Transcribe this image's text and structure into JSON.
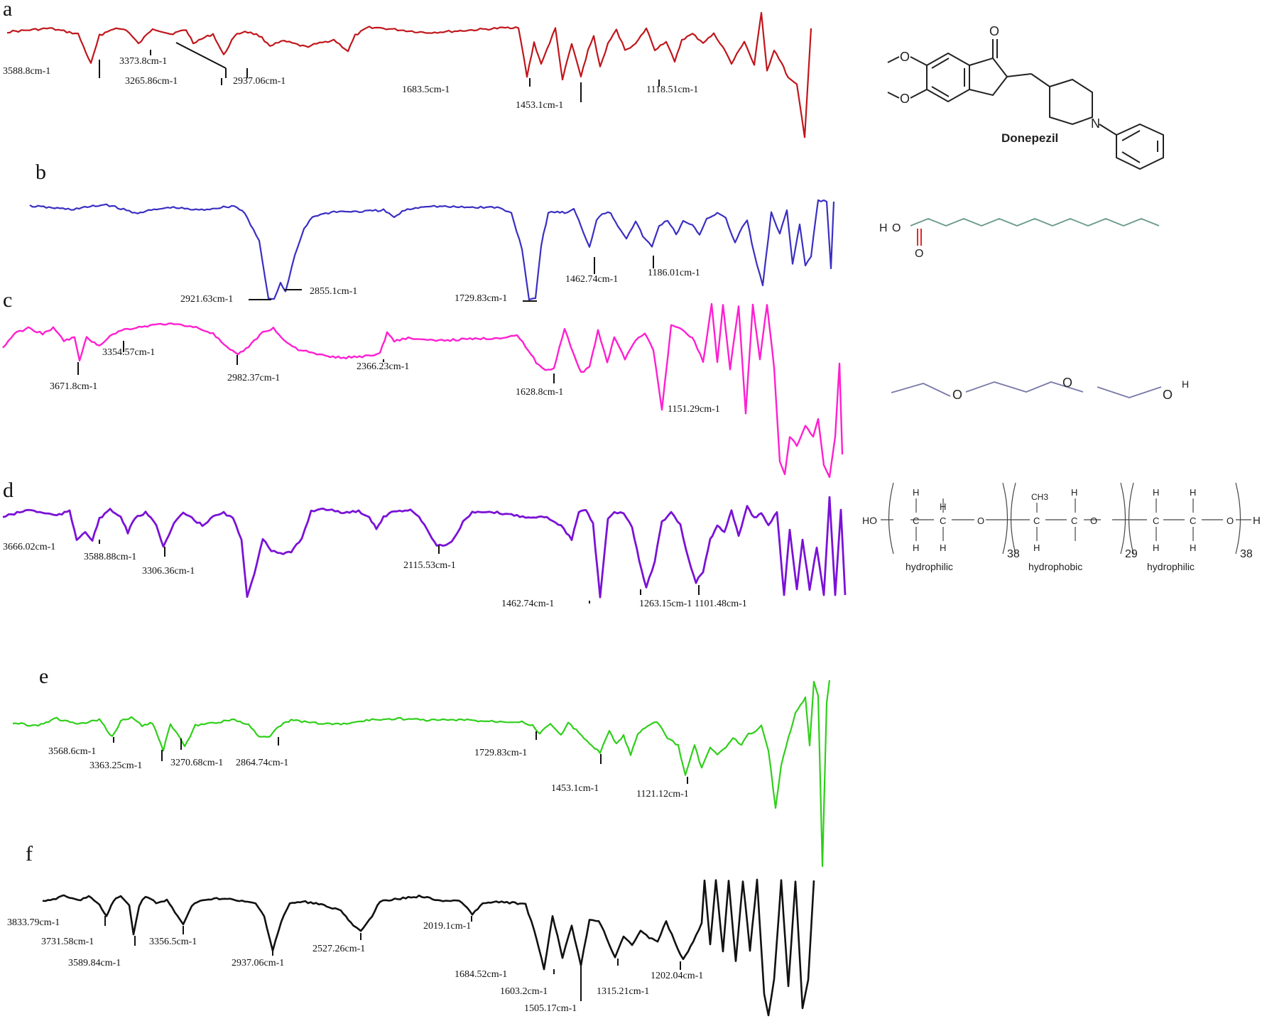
{
  "colors": {
    "a": "#c0161b",
    "b": "#3a2fc2",
    "c": "#ff1fd0",
    "d": "#7a12d6",
    "e": "#2fcf1a",
    "f": "#111111",
    "oxygen": "#e01010",
    "hydrogen": "#5a8a8a"
  },
  "chart_data": [
    {
      "type": "line",
      "panel": "a",
      "series_color": "#c0161b",
      "peaks": [
        {
          "label": "3588.8cm-1",
          "wavenumber": 3588.8
        },
        {
          "label": "3373.8cm-1",
          "wavenumber": 3373.8
        },
        {
          "label": "3265.86cm-1",
          "wavenumber": 3265.86
        },
        {
          "label": "2937.06cm-1",
          "wavenumber": 2937.06
        },
        {
          "label": "1683.5cm-1",
          "wavenumber": 1683.5
        },
        {
          "label": "1453.1cm-1",
          "wavenumber": 1453.1
        },
        {
          "label": "1118.51cm-1",
          "wavenumber": 1118.51
        }
      ],
      "molecule": {
        "name": "Donepezil",
        "atoms": [
          "O",
          "O",
          "O",
          "N"
        ]
      }
    },
    {
      "type": "line",
      "panel": "b",
      "series_color": "#3a2fc2",
      "peaks": [
        {
          "label": "2921.63cm-1",
          "wavenumber": 2921.63
        },
        {
          "label": "2855.1cm-1",
          "wavenumber": 2855.1
        },
        {
          "label": "1729.83cm-1",
          "wavenumber": 1729.83
        },
        {
          "label": "1462.74cm-1",
          "wavenumber": 1462.74
        },
        {
          "label": "1186.01cm-1",
          "wavenumber": 1186.01
        }
      ],
      "molecule": {
        "atoms": [
          "H",
          "O",
          "O"
        ]
      }
    },
    {
      "type": "line",
      "panel": "c",
      "series_color": "#ff1fd0",
      "peaks": [
        {
          "label": "3671.8cm-1",
          "wavenumber": 3671.8
        },
        {
          "label": "3354.57cm-1",
          "wavenumber": 3354.57
        },
        {
          "label": "2982.37cm-1",
          "wavenumber": 2982.37
        },
        {
          "label": "2366.23cm-1",
          "wavenumber": 2366.23
        },
        {
          "label": "1628.8cm-1",
          "wavenumber": 1628.8
        },
        {
          "label": "1151.29cm-1",
          "wavenumber": 1151.29
        }
      ],
      "molecule": {
        "atoms": [
          "O",
          "O",
          "O",
          "H"
        ]
      }
    },
    {
      "type": "line",
      "panel": "d",
      "series_color": "#7a12d6",
      "peaks": [
        {
          "label": "3666.02cm-1",
          "wavenumber": 3666.02
        },
        {
          "label": "3588.88cm-1",
          "wavenumber": 3588.88
        },
        {
          "label": "3306.36cm-1",
          "wavenumber": 3306.36
        },
        {
          "label": "2115.53cm-1",
          "wavenumber": 2115.53
        },
        {
          "label": "1462.74cm-1",
          "wavenumber": 1462.74
        },
        {
          "label": "1263.15cm-1",
          "wavenumber": 1263.15
        },
        {
          "label": "1101.48cm-1",
          "wavenumber": 1101.48
        }
      ],
      "molecule": {
        "blocks": [
          {
            "name": "hydrophilic",
            "count": "38"
          },
          {
            "name": "hydrophobic",
            "count": "29"
          },
          {
            "name": "hydrophilic",
            "count": "38"
          }
        ],
        "end_left": "HO",
        "end_right": "H",
        "atoms": [
          "H",
          "C",
          "O",
          "CH3"
        ]
      }
    },
    {
      "type": "line",
      "panel": "e",
      "series_color": "#2fcf1a",
      "peaks": [
        {
          "label": "3568.6cm-1",
          "wavenumber": 3568.6
        },
        {
          "label": "3363.25cm-1",
          "wavenumber": 3363.25
        },
        {
          "label": "3270.68cm-1",
          "wavenumber": 3270.68
        },
        {
          "label": "2864.74cm-1",
          "wavenumber": 2864.74
        },
        {
          "label": "1729.83cm-1",
          "wavenumber": 1729.83
        },
        {
          "label": "1453.1cm-1",
          "wavenumber": 1453.1
        },
        {
          "label": "1121.12cm-1",
          "wavenumber": 1121.12
        }
      ]
    },
    {
      "type": "line",
      "panel": "f",
      "series_color": "#111111",
      "peaks": [
        {
          "label": "3833.79cm-1",
          "wavenumber": 3833.79
        },
        {
          "label": "3731.58cm-1",
          "wavenumber": 3731.58
        },
        {
          "label": "3589.84cm-1",
          "wavenumber": 3589.84
        },
        {
          "label": "3356.5cm-1",
          "wavenumber": 3356.5
        },
        {
          "label": "2937.06cm-1",
          "wavenumber": 2937.06
        },
        {
          "label": "2527.26cm-1",
          "wavenumber": 2527.26
        },
        {
          "label": "2019.1cm-1",
          "wavenumber": 2019.1
        },
        {
          "label": "1684.52cm-1",
          "wavenumber": 1684.52
        },
        {
          "label": "1603.2cm-1",
          "wavenumber": 1603.2
        },
        {
          "label": "1505.17cm-1",
          "wavenumber": 1505.17
        },
        {
          "label": "1315.21cm-1",
          "wavenumber": 1315.21
        },
        {
          "label": "1202.04cm-1",
          "wavenumber": 1202.04
        }
      ]
    }
  ]
}
